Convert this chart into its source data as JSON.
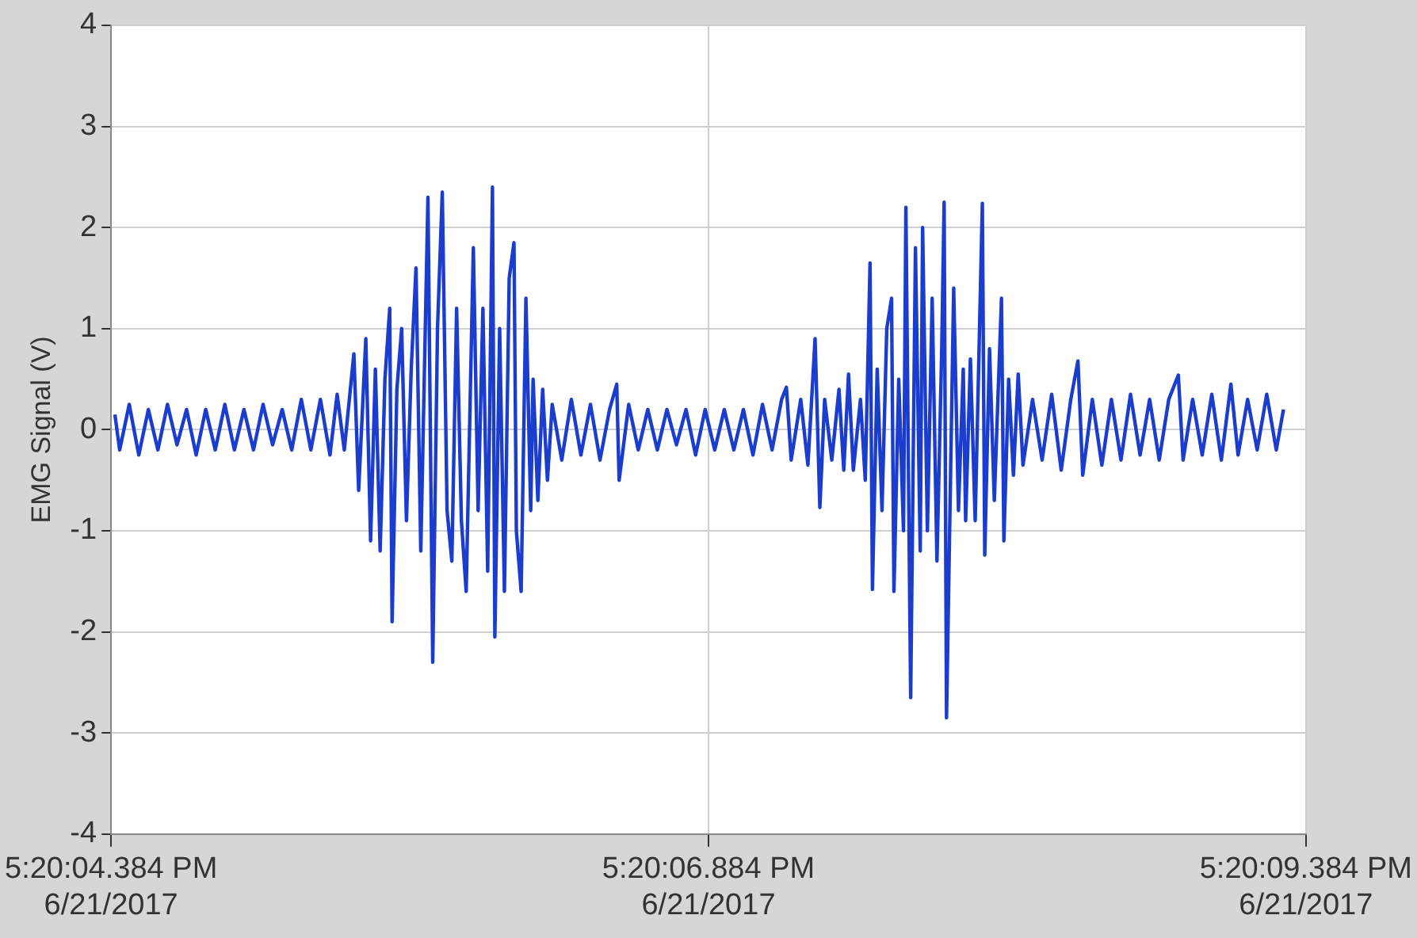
{
  "chart_data": {
    "type": "line",
    "ylabel": "EMG Signal (V)",
    "color": "#1a3ccf",
    "marker": "none",
    "grid": true,
    "xlim": [
      "2017-06-21T17:20:04.384",
      "2017-06-21T17:20:09.384"
    ],
    "xticks": [
      {
        "value": "2017-06-21T17:20:04.384",
        "label": "5:20:04.384 PM\n6/21/2017"
      },
      {
        "value": "2017-06-21T17:20:06.884",
        "label": "5:20:06.884 PM\n6/21/2017"
      },
      {
        "value": "2017-06-21T17:20:09.384",
        "label": "5:20:09.384 PM\n6/21/2017"
      }
    ],
    "ylim": [
      -4,
      4
    ],
    "yticks": [
      -4,
      -3,
      -2,
      -1,
      0,
      1,
      2,
      3,
      4
    ],
    "x": [
      "2017-06-21T17:20:04.40",
      "2017-06-21T17:20:04.42",
      "2017-06-21T17:20:04.46",
      "2017-06-21T17:20:04.50",
      "2017-06-21T17:20:04.54",
      "2017-06-21T17:20:04.58",
      "2017-06-21T17:20:04.62",
      "2017-06-21T17:20:04.66",
      "2017-06-21T17:20:04.70",
      "2017-06-21T17:20:04.74",
      "2017-06-21T17:20:04.78",
      "2017-06-21T17:20:04.82",
      "2017-06-21T17:20:04.86",
      "2017-06-21T17:20:04.90",
      "2017-06-21T17:20:04.94",
      "2017-06-21T17:20:04.98",
      "2017-06-21T17:20:05.02",
      "2017-06-21T17:20:05.06",
      "2017-06-21T17:20:05.10",
      "2017-06-21T17:20:05.14",
      "2017-06-21T17:20:05.18",
      "2017-06-21T17:20:05.22",
      "2017-06-21T17:20:05.26",
      "2017-06-21T17:20:05.30",
      "2017-06-21T17:20:05.33",
      "2017-06-21T17:20:05.36",
      "2017-06-21T17:20:05.40",
      "2017-06-21T17:20:05.42",
      "2017-06-21T17:20:05.45",
      "2017-06-21T17:20:05.47",
      "2017-06-21T17:20:05.49",
      "2017-06-21T17:20:05.51",
      "2017-06-21T17:20:05.53",
      "2017-06-21T17:20:05.55",
      "2017-06-21T17:20:05.56",
      "2017-06-21T17:20:05.58",
      "2017-06-21T17:20:05.60",
      "2017-06-21T17:20:05.62",
      "2017-06-21T17:20:05.64",
      "2017-06-21T17:20:05.66",
      "2017-06-21T17:20:05.68",
      "2017-06-21T17:20:05.71",
      "2017-06-21T17:20:05.73",
      "2017-06-21T17:20:05.75",
      "2017-06-21T17:20:05.77",
      "2017-06-21T17:20:05.79",
      "2017-06-21T17:20:05.81",
      "2017-06-21T17:20:05.83",
      "2017-06-21T17:20:05.85",
      "2017-06-21T17:20:05.87",
      "2017-06-21T17:20:05.90",
      "2017-06-21T17:20:05.92",
      "2017-06-21T17:20:05.94",
      "2017-06-21T17:20:05.96",
      "2017-06-21T17:20:05.98",
      "2017-06-21T17:20:05.99",
      "2017-06-21T17:20:06.01",
      "2017-06-21T17:20:06.03",
      "2017-06-21T17:20:06.05",
      "2017-06-21T17:20:06.07",
      "2017-06-21T17:20:06.08",
      "2017-06-21T17:20:06.10",
      "2017-06-21T17:20:06.12",
      "2017-06-21T17:20:06.14",
      "2017-06-21T17:20:06.15",
      "2017-06-21T17:20:06.17",
      "2017-06-21T17:20:06.19",
      "2017-06-21T17:20:06.21",
      "2017-06-21T17:20:06.23",
      "2017-06-21T17:20:06.27",
      "2017-06-21T17:20:06.31",
      "2017-06-21T17:20:06.35",
      "2017-06-21T17:20:06.39",
      "2017-06-21T17:20:06.43",
      "2017-06-21T17:20:06.47",
      "2017-06-21T17:20:06.50",
      "2017-06-21T17:20:06.51",
      "2017-06-21T17:20:06.55",
      "2017-06-21T17:20:06.59",
      "2017-06-21T17:20:06.63",
      "2017-06-21T17:20:06.67",
      "2017-06-21T17:20:06.71",
      "2017-06-21T17:20:06.75",
      "2017-06-21T17:20:06.79",
      "2017-06-21T17:20:06.83",
      "2017-06-21T17:20:06.87",
      "2017-06-21T17:20:06.91",
      "2017-06-21T17:20:06.95",
      "2017-06-21T17:20:06.99",
      "2017-06-21T17:20:07.03",
      "2017-06-21T17:20:07.07",
      "2017-06-21T17:20:07.11",
      "2017-06-21T17:20:07.15",
      "2017-06-21T17:20:07.19",
      "2017-06-21T17:20:07.21",
      "2017-06-21T17:20:07.23",
      "2017-06-21T17:20:07.27",
      "2017-06-21T17:20:07.30",
      "2017-06-21T17:20:07.33",
      "2017-06-21T17:20:07.35",
      "2017-06-21T17:20:07.37",
      "2017-06-21T17:20:07.40",
      "2017-06-21T17:20:07.43",
      "2017-06-21T17:20:07.45",
      "2017-06-21T17:20:07.47",
      "2017-06-21T17:20:07.49",
      "2017-06-21T17:20:07.52",
      "2017-06-21T17:20:07.54",
      "2017-06-21T17:20:07.56",
      "2017-06-21T17:20:07.57",
      "2017-06-21T17:20:07.59",
      "2017-06-21T17:20:07.61",
      "2017-06-21T17:20:07.63",
      "2017-06-21T17:20:07.65",
      "2017-06-21T17:20:07.66",
      "2017-06-21T17:20:07.68",
      "2017-06-21T17:20:07.70",
      "2017-06-21T17:20:07.71",
      "2017-06-21T17:20:07.73",
      "2017-06-21T17:20:07.75",
      "2017-06-21T17:20:07.77",
      "2017-06-21T17:20:07.78",
      "2017-06-21T17:20:07.80",
      "2017-06-21T17:20:07.82",
      "2017-06-21T17:20:07.84",
      "2017-06-21T17:20:07.86",
      "2017-06-21T17:20:07.87",
      "2017-06-21T17:20:07.88",
      "2017-06-21T17:20:07.91",
      "2017-06-21T17:20:07.93",
      "2017-06-21T17:20:07.95",
      "2017-06-21T17:20:07.96",
      "2017-06-21T17:20:07.98",
      "2017-06-21T17:20:08.00",
      "2017-06-21T17:20:08.03",
      "2017-06-21T17:20:08.04",
      "2017-06-21T17:20:08.06",
      "2017-06-21T17:20:08.08",
      "2017-06-21T17:20:08.11",
      "2017-06-21T17:20:08.12",
      "2017-06-21T17:20:08.14",
      "2017-06-21T17:20:08.16",
      "2017-06-21T17:20:08.18",
      "2017-06-21T17:20:08.20",
      "2017-06-21T17:20:08.24",
      "2017-06-21T17:20:08.28",
      "2017-06-21T17:20:08.32",
      "2017-06-21T17:20:08.36",
      "2017-06-21T17:20:08.40",
      "2017-06-21T17:20:08.43",
      "2017-06-21T17:20:08.45",
      "2017-06-21T17:20:08.49",
      "2017-06-21T17:20:08.53",
      "2017-06-21T17:20:08.57",
      "2017-06-21T17:20:08.61",
      "2017-06-21T17:20:08.65",
      "2017-06-21T17:20:08.69",
      "2017-06-21T17:20:08.73",
      "2017-06-21T17:20:08.77",
      "2017-06-21T17:20:08.81",
      "2017-06-21T17:20:08.85",
      "2017-06-21T17:20:08.87",
      "2017-06-21T17:20:08.91",
      "2017-06-21T17:20:08.95",
      "2017-06-21T17:20:08.99",
      "2017-06-21T17:20:09.03",
      "2017-06-21T17:20:09.07",
      "2017-06-21T17:20:09.10",
      "2017-06-21T17:20:09.14",
      "2017-06-21T17:20:09.18",
      "2017-06-21T17:20:09.22",
      "2017-06-21T17:20:09.26",
      "2017-06-21T17:20:09.29"
    ],
    "values": [
      0.15,
      -0.2,
      0.25,
      -0.25,
      0.2,
      -0.2,
      0.25,
      -0.15,
      0.2,
      -0.25,
      0.2,
      -0.2,
      0.25,
      -0.2,
      0.2,
      -0.2,
      0.25,
      -0.15,
      0.2,
      -0.2,
      0.3,
      -0.2,
      0.3,
      -0.25,
      0.35,
      -0.2,
      0.75,
      -0.6,
      0.9,
      -1.1,
      0.6,
      -1.2,
      0.5,
      1.2,
      -1.9,
      0.4,
      1.0,
      -0.9,
      0.6,
      1.6,
      -1.2,
      2.3,
      -2.3,
      1.0,
      2.35,
      -0.8,
      -1.3,
      1.2,
      -0.9,
      -1.6,
      1.8,
      -0.8,
      1.2,
      -1.4,
      2.4,
      -2.05,
      1.0,
      -1.6,
      1.5,
      1.85,
      -1.0,
      -1.6,
      1.3,
      -0.8,
      0.5,
      -0.7,
      0.4,
      -0.5,
      0.25,
      -0.3,
      0.3,
      -0.25,
      0.25,
      -0.3,
      0.2,
      0.45,
      -0.5,
      0.25,
      -0.2,
      0.2,
      -0.2,
      0.2,
      -0.15,
      0.2,
      -0.25,
      0.2,
      -0.2,
      0.2,
      -0.2,
      0.2,
      -0.25,
      0.25,
      -0.2,
      0.3,
      0.42,
      -0.3,
      0.3,
      -0.35,
      0.9,
      -0.77,
      0.3,
      -0.3,
      0.4,
      -0.4,
      0.55,
      -0.4,
      0.3,
      -0.5,
      1.65,
      -1.58,
      0.6,
      -0.8,
      1.0,
      1.3,
      -1.6,
      0.5,
      -1.0,
      2.2,
      -2.65,
      1.8,
      -1.2,
      2.0,
      -1.0,
      1.3,
      -1.3,
      0.8,
      2.25,
      -2.85,
      1.4,
      -0.8,
      0.6,
      -0.9,
      0.7,
      -0.9,
      2.24,
      -1.24,
      0.8,
      -0.7,
      1.3,
      -1.1,
      0.5,
      -0.45,
      0.55,
      -0.35,
      0.3,
      -0.3,
      0.35,
      -0.4,
      0.3,
      0.68,
      -0.45,
      0.3,
      -0.35,
      0.3,
      -0.3,
      0.35,
      -0.25,
      0.3,
      -0.3,
      0.3,
      0.54,
      -0.3,
      0.3,
      -0.25,
      0.35,
      -0.3,
      0.45,
      -0.25,
      0.3,
      -0.2,
      0.35,
      -0.2,
      0.2
    ]
  }
}
